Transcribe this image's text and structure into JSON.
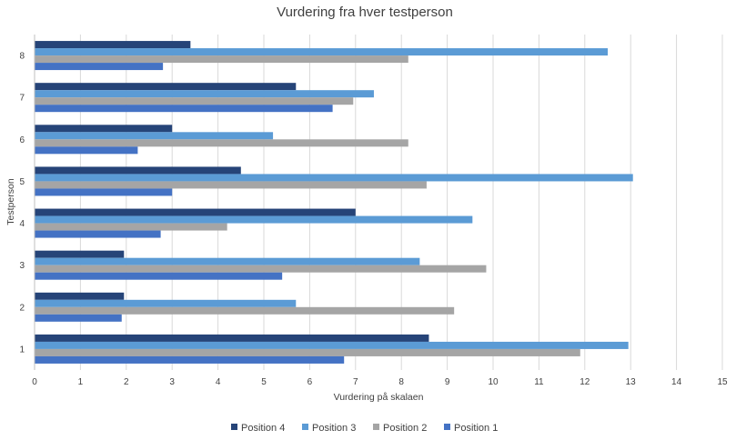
{
  "chart_data": {
    "type": "bar",
    "orientation": "horizontal",
    "title": "Vurdering fra hver testperson",
    "xlabel": "Vurdering på skalaen",
    "ylabel": "Testperson",
    "xlim": [
      0,
      15
    ],
    "x_ticks": [
      "0",
      "1",
      "2",
      "3",
      "4",
      "5",
      "6",
      "7",
      "8",
      "9",
      "10",
      "11",
      "12",
      "13",
      "14",
      "15"
    ],
    "categories": [
      "1",
      "2",
      "3",
      "4",
      "5",
      "6",
      "7",
      "8"
    ],
    "grid": "vertical",
    "legend_position": "bottom",
    "series": [
      {
        "name": "Position 1",
        "color": "#4472C4",
        "values": [
          6.75,
          1.9,
          5.4,
          2.75,
          3.0,
          2.25,
          6.5,
          2.8
        ]
      },
      {
        "name": "Position 2",
        "color": "#A5A5A5",
        "values": [
          11.9,
          9.15,
          9.85,
          4.2,
          8.55,
          8.15,
          6.95,
          8.15
        ]
      },
      {
        "name": "Position 3",
        "color": "#5B9BD5",
        "values": [
          12.95,
          5.7,
          8.4,
          9.55,
          13.05,
          5.2,
          7.4,
          12.5
        ]
      },
      {
        "name": "Position 4",
        "color": "#264478",
        "values": [
          8.6,
          1.95,
          1.95,
          7.0,
          4.5,
          3.0,
          5.7,
          3.4
        ]
      }
    ],
    "legend_order": [
      "Position 4",
      "Position 3",
      "Position 2",
      "Position 1"
    ]
  }
}
